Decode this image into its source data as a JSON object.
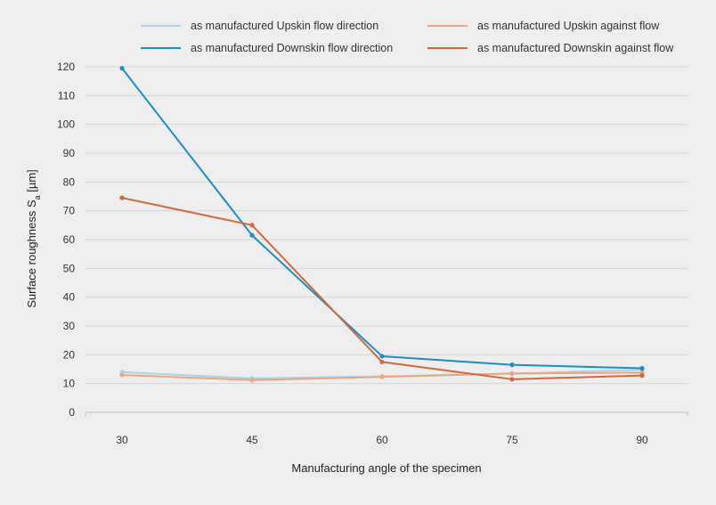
{
  "chart_data": {
    "type": "line",
    "title": "",
    "xlabel": "Manufacturing angle of the specimen",
    "ylabel": {
      "main": "Surface roughness S",
      "sub": "a",
      "unit": " [µm]"
    },
    "categories": [
      "30",
      "45",
      "60",
      "75",
      "90"
    ],
    "ylim": [
      0,
      120
    ],
    "yticks": [
      0,
      10,
      20,
      30,
      40,
      50,
      60,
      70,
      80,
      90,
      100,
      110,
      120
    ],
    "grid": true,
    "legend_position": "top",
    "series": [
      {
        "name": "as manufactured Upskin flow direction",
        "color": "#a9d3e6",
        "values": [
          14,
          11.8,
          12.5,
          13.5,
          14.8
        ]
      },
      {
        "name": "as manufactured Upskin against flow",
        "color": "#e8a77e",
        "values": [
          13,
          11.2,
          12.3,
          13.5,
          13.8
        ]
      },
      {
        "name": "as manufactured Downskin flow direction",
        "color": "#1a8fc4",
        "values": [
          119.5,
          61.5,
          19.5,
          16.5,
          15.3
        ]
      },
      {
        "name": "as manufactured Downskin against flow",
        "color": "#d2693c",
        "values": [
          74.5,
          65,
          17.5,
          11.5,
          12.8
        ]
      }
    ]
  }
}
